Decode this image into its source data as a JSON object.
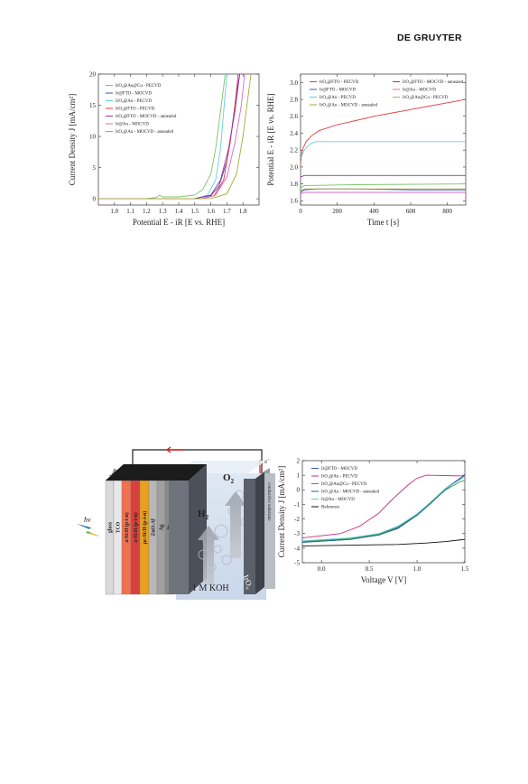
{
  "header": {
    "publisher": "DE GRUYTER"
  },
  "chart_data": [
    {
      "type": "line",
      "xlabel": "Potential E - iR [E vs. RHE]",
      "ylabel": "Current Density J [mA/cm²]",
      "xlim": [
        0.9,
        1.9
      ],
      "ylim": [
        -1,
        20
      ],
      "xticks": [
        1.0,
        1.1,
        1.2,
        1.3,
        1.4,
        1.5,
        1.6,
        1.7,
        1.8
      ],
      "yticks": [
        0,
        5,
        10,
        15,
        20
      ],
      "legend_position": "top-left",
      "series": [
        {
          "name": "IrO₂@Au@Cu - PECVD",
          "color": "#7ac36a",
          "points": [
            [
              0.9,
              0
            ],
            [
              1.2,
              0.05
            ],
            [
              1.26,
              0.2
            ],
            [
              1.28,
              0.6
            ],
            [
              1.3,
              0.3
            ],
            [
              1.4,
              0.3
            ],
            [
              1.5,
              0.6
            ],
            [
              1.55,
              1.5
            ],
            [
              1.6,
              4
            ],
            [
              1.63,
              8
            ],
            [
              1.66,
              14
            ],
            [
              1.69,
              20
            ]
          ]
        },
        {
          "name": "Ir@FTO - MOCVD",
          "color": "#3a55b8",
          "points": [
            [
              0.9,
              0
            ],
            [
              1.5,
              0.05
            ],
            [
              1.6,
              0.5
            ],
            [
              1.65,
              2
            ],
            [
              1.7,
              6
            ],
            [
              1.73,
              11
            ],
            [
              1.76,
              17
            ],
            [
              1.78,
              20
            ]
          ]
        },
        {
          "name": "IrO₂@Au - PECVD",
          "color": "#5fd0dc",
          "points": [
            [
              0.9,
              0
            ],
            [
              1.5,
              0.05
            ],
            [
              1.58,
              0.6
            ],
            [
              1.63,
              3
            ],
            [
              1.66,
              8
            ],
            [
              1.68,
              14
            ],
            [
              1.7,
              20
            ]
          ]
        },
        {
          "name": "IrO₂@FTO - PECVD",
          "color": "#e34141",
          "points": [
            [
              0.9,
              0
            ],
            [
              1.55,
              0.05
            ],
            [
              1.62,
              0.5
            ],
            [
              1.68,
              3
            ],
            [
              1.72,
              9
            ],
            [
              1.75,
              15
            ],
            [
              1.77,
              20
            ]
          ]
        },
        {
          "name": "IrO₂@FTO - MOCVD - annealed",
          "color": "#9c2fb0",
          "points": [
            [
              0.9,
              0
            ],
            [
              1.5,
              0.05
            ],
            [
              1.6,
              0.6
            ],
            [
              1.66,
              3
            ],
            [
              1.71,
              8
            ],
            [
              1.75,
              14
            ],
            [
              1.78,
              20
            ]
          ]
        },
        {
          "name": "Ir@Au - MOCVD",
          "color": "#d968c9",
          "points": [
            [
              0.9,
              0
            ],
            [
              1.55,
              0.05
            ],
            [
              1.63,
              0.6
            ],
            [
              1.7,
              3.5
            ],
            [
              1.75,
              9
            ],
            [
              1.79,
              15
            ],
            [
              1.81,
              20
            ]
          ]
        },
        {
          "name": "IrO₂@Au - MOCVD - annealed",
          "color": "#a9a83a",
          "points": [
            [
              0.9,
              0
            ],
            [
              1.6,
              0.05
            ],
            [
              1.7,
              0.8
            ],
            [
              1.76,
              4
            ],
            [
              1.8,
              10
            ],
            [
              1.83,
              16
            ],
            [
              1.85,
              20
            ]
          ]
        }
      ]
    },
    {
      "type": "line",
      "xlabel": "Time t [s]",
      "ylabel": "Potential E - iR [E vs. RHE]",
      "xlim": [
        0,
        900
      ],
      "ylim": [
        1.55,
        3.1
      ],
      "xticks": [
        0,
        200,
        400,
        600,
        800
      ],
      "yticks": [
        1.6,
        1.8,
        2.0,
        2.2,
        2.4,
        2.6,
        2.8,
        3.0
      ],
      "legend_position": "top",
      "series": [
        {
          "name": "IrO₂@FTO - PECVD",
          "color": "#e34141",
          "points": [
            [
              0,
              2.05
            ],
            [
              10,
              2.2
            ],
            [
              30,
              2.3
            ],
            [
              60,
              2.37
            ],
            [
              100,
              2.43
            ],
            [
              200,
              2.5
            ],
            [
              300,
              2.55
            ],
            [
              400,
              2.6
            ],
            [
              500,
              2.64
            ],
            [
              600,
              2.68
            ],
            [
              700,
              2.72
            ],
            [
              800,
              2.76
            ],
            [
              900,
              2.8
            ]
          ]
        },
        {
          "name": "Ir@FTO - MOCVD",
          "color": "#3a55b8",
          "points": [
            [
              0,
              1.7
            ],
            [
              20,
              1.73
            ],
            [
              100,
              1.74
            ],
            [
              300,
              1.74
            ],
            [
              600,
              1.73
            ],
            [
              900,
              1.73
            ]
          ]
        },
        {
          "name": "IrO₂@Au - PECVD",
          "color": "#5fd0dc",
          "points": [
            [
              0,
              2.1
            ],
            [
              20,
              2.2
            ],
            [
              50,
              2.27
            ],
            [
              80,
              2.3
            ],
            [
              100,
              2.3
            ],
            [
              900,
              2.3
            ]
          ]
        },
        {
          "name": "IrO₂@Au - MOCVD - annealed",
          "color": "#a9a83a",
          "points": [
            [
              0,
              1.72
            ],
            [
              20,
              1.74
            ],
            [
              900,
              1.74
            ]
          ]
        },
        {
          "name": "IrO₂@FTO - MOCVD - annealed",
          "color": "#9c2fb0",
          "points": [
            [
              0,
              1.88
            ],
            [
              20,
              1.9
            ],
            [
              900,
              1.9
            ]
          ]
        },
        {
          "name": "Ir@Au - MOCVD",
          "color": "#d968c9",
          "points": [
            [
              0,
              1.68
            ],
            [
              20,
              1.7
            ],
            [
              900,
              1.7
            ]
          ]
        },
        {
          "name": "IrO₂@Au@Cu - PECVD",
          "color": "#7ac36a",
          "points": [
            [
              0,
              1.75
            ],
            [
              20,
              1.78
            ],
            [
              300,
              1.79
            ],
            [
              900,
              1.8
            ]
          ]
        }
      ]
    },
    {
      "type": "line",
      "xlabel": "Voltage V [V]",
      "ylabel": "Current Density J [mA/cm²]",
      "xlim": [
        -0.2,
        1.5
      ],
      "ylim": [
        -5,
        2
      ],
      "xticks": [
        0.0,
        0.5,
        1.0,
        1.5
      ],
      "yticks": [
        -5,
        -4,
        -3,
        -2,
        -1,
        0,
        1,
        2
      ],
      "legend_position": "top-left",
      "series": [
        {
          "name": "Ir@FTO - MOCVD",
          "color": "#3a55b8",
          "points": [
            [
              -0.2,
              -3.6
            ],
            [
              0.3,
              -3.4
            ],
            [
              0.6,
              -3.1
            ],
            [
              0.8,
              -2.6
            ],
            [
              1.0,
              -1.7
            ],
            [
              1.15,
              -0.8
            ],
            [
              1.3,
              0.1
            ],
            [
              1.45,
              0.8
            ],
            [
              1.5,
              1.0
            ]
          ]
        },
        {
          "name": "IrO₂@Au - PECVD",
          "color": "#c8307f",
          "points": [
            [
              -0.2,
              -3.3
            ],
            [
              0.2,
              -3.0
            ],
            [
              0.4,
              -2.5
            ],
            [
              0.6,
              -1.6
            ],
            [
              0.75,
              -0.6
            ],
            [
              0.9,
              0.3
            ],
            [
              1.0,
              0.8
            ],
            [
              1.1,
              1.0
            ],
            [
              1.5,
              0.95
            ]
          ]
        },
        {
          "name": "IrO₂@Au@Cu - PECVD",
          "color": "#3e9a4f",
          "points": [
            [
              -0.2,
              -3.55
            ],
            [
              0.3,
              -3.35
            ],
            [
              0.6,
              -3.05
            ],
            [
              0.8,
              -2.55
            ],
            [
              1.0,
              -1.7
            ],
            [
              1.15,
              -0.85
            ],
            [
              1.3,
              0.0
            ],
            [
              1.45,
              0.55
            ],
            [
              1.5,
              0.65
            ]
          ]
        },
        {
          "name": "IrO₂@Au - MOCVD - annealed",
          "color": "#1c6b7a",
          "points": [
            [
              -0.2,
              -3.6
            ],
            [
              0.3,
              -3.4
            ],
            [
              0.6,
              -3.1
            ],
            [
              0.8,
              -2.65
            ],
            [
              1.0,
              -1.75
            ],
            [
              1.15,
              -0.9
            ],
            [
              1.3,
              0.05
            ],
            [
              1.45,
              0.75
            ],
            [
              1.5,
              1.05
            ]
          ]
        },
        {
          "name": "Ir@Au - MOCVD",
          "color": "#63c9d7",
          "points": [
            [
              -0.2,
              -3.5
            ],
            [
              0.3,
              -3.3
            ],
            [
              0.6,
              -3.0
            ],
            [
              0.8,
              -2.5
            ],
            [
              1.0,
              -1.65
            ],
            [
              1.15,
              -0.8
            ],
            [
              1.3,
              0.1
            ],
            [
              1.45,
              0.7
            ],
            [
              1.5,
              0.9
            ]
          ]
        },
        {
          "name": "Reference",
          "color": "#111111",
          "points": [
            [
              -0.2,
              -3.85
            ],
            [
              0.3,
              -3.8
            ],
            [
              0.8,
              -3.75
            ],
            [
              1.1,
              -3.65
            ],
            [
              1.3,
              -3.55
            ],
            [
              1.5,
              -3.4
            ]
          ]
        }
      ]
    }
  ],
  "diagram": {
    "layers": [
      "glass",
      "TCO",
      "a-Si:H (p-i-n)",
      "a-Si:H (p-i-n)",
      "μc-Si:H (p-i-n)",
      "ZnO:Al",
      "Ag",
      "Pt"
    ],
    "sealant": "sealant",
    "light": "hν",
    "h2": "H",
    "h2_sub": "2",
    "o2": "O",
    "o2_sub": "2",
    "electrolyte": "1 M KOH",
    "catalyst": "IrO",
    "catalyst_sub": "x",
    "substrate": "conductive substrate",
    "electron": "e",
    "electron_sup": "−"
  }
}
